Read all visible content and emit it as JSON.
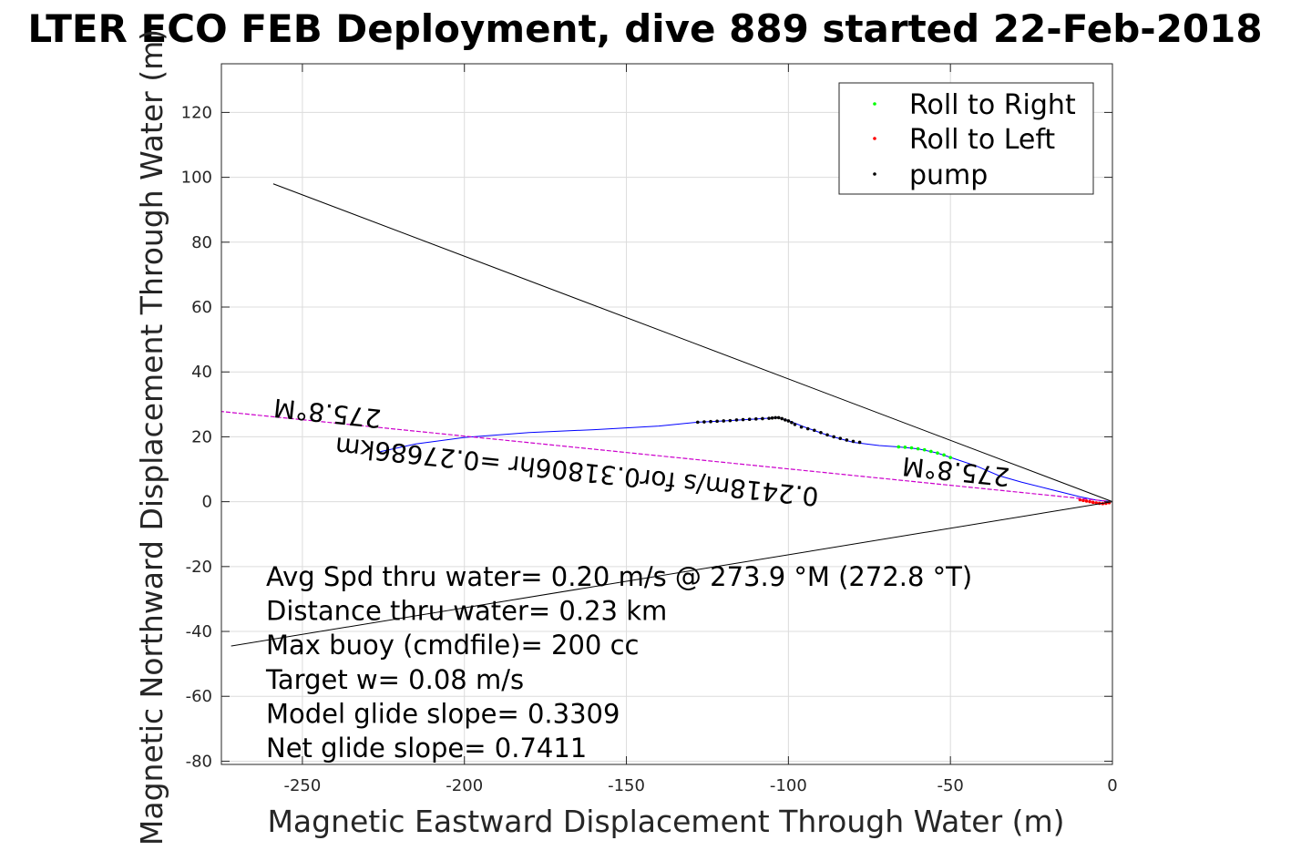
{
  "chart_data": {
    "type": "line",
    "title": "LTER ECO FEB Deployment, dive 889 started 22-Feb-2018",
    "xlabel": "Magnetic Eastward Displacement Through Water (m)",
    "ylabel": "Magnetic Northward Displacement Through Water (m)",
    "xlim": [
      -275,
      0
    ],
    "ylim": [
      -81,
      135
    ],
    "xticks": [
      -250,
      -200,
      -150,
      -100,
      -50,
      0
    ],
    "yticks": [
      -80,
      -60,
      -40,
      -20,
      0,
      20,
      40,
      60,
      80,
      100,
      120
    ],
    "grid": true,
    "legend_position": "top-right",
    "legend": [
      {
        "label": "Roll to Right",
        "color": "#00ff00"
      },
      {
        "label": "Roll to Left",
        "color": "#ff0000"
      },
      {
        "label": "pump",
        "color": "#000000"
      }
    ],
    "series": [
      {
        "kind": "track",
        "color": "#0000ff",
        "x": [
          0,
          -5,
          -10,
          -20,
          -28,
          -35,
          -42,
          -48,
          -54,
          -60,
          -66,
          -72,
          -80,
          -88,
          -95,
          -100,
          -103,
          -105,
          -110,
          -120,
          -128,
          -140,
          -160,
          -180,
          -200,
          -215,
          -226
        ],
        "y": [
          0,
          0.5,
          1.5,
          4,
          6,
          8,
          11,
          13,
          15,
          16.3,
          16.9,
          17.3,
          18.3,
          20.5,
          23,
          25,
          25.9,
          25.8,
          25.5,
          24.9,
          24.5,
          23.3,
          22.2,
          21.3,
          19.8,
          17.8,
          15.4
        ]
      },
      {
        "kind": "roll-right",
        "color": "#00ff00",
        "x": [
          -66,
          -64,
          -62,
          -60,
          -58,
          -56,
          -54,
          -52,
          -50
        ],
        "y": [
          16.9,
          16.8,
          16.6,
          16.3,
          16.0,
          15.5,
          15.0,
          14.4,
          13.6
        ]
      },
      {
        "kind": "roll-left",
        "color": "#ff0000",
        "x": [
          -1,
          -2,
          -3,
          -4,
          -5,
          -6,
          -7,
          -8,
          -9,
          -10
        ],
        "y": [
          -0.3,
          -0.5,
          -0.6,
          -0.5,
          -0.4,
          -0.2,
          0.0,
          0.2,
          0.4,
          0.6
        ]
      },
      {
        "kind": "pump",
        "color": "#000000",
        "x": [
          -128,
          -126,
          -124,
          -122,
          -120,
          -118,
          -116,
          -114,
          -112,
          -110,
          -108,
          -106,
          -105,
          -104,
          -103,
          -102,
          -101,
          -100,
          -99,
          -98,
          -96,
          -94,
          -92,
          -90,
          -88,
          -86,
          -84,
          -82,
          -80,
          -78
        ],
        "y": [
          24.5,
          24.6,
          24.7,
          24.8,
          24.9,
          25.0,
          25.2,
          25.3,
          25.4,
          25.5,
          25.6,
          25.7,
          25.8,
          25.9,
          25.9,
          25.6,
          25.2,
          24.9,
          24.4,
          23.8,
          23.0,
          22.5,
          22.0,
          21.3,
          20.6,
          20.0,
          19.5,
          19.0,
          18.6,
          18.3
        ]
      },
      {
        "kind": "heading-line",
        "color": "#cc00cc",
        "x": [
          0,
          -275
        ],
        "y": [
          0,
          27.8
        ]
      },
      {
        "kind": "envelope-upper",
        "color": "#000000",
        "x": [
          0,
          -259
        ],
        "y": [
          0,
          98
        ]
      },
      {
        "kind": "envelope-lower",
        "color": "#000000",
        "x": [
          0,
          -272
        ],
        "y": [
          0,
          -44.5
        ]
      }
    ],
    "annotations": [
      {
        "text": "275.8°M",
        "x": -242,
        "y": 30,
        "rotation": 186
      },
      {
        "text": "0.2418m/s for0.31806hr =0.27686km",
        "x": -165,
        "y": 12,
        "rotation": 186
      },
      {
        "text": "275.8°M",
        "x": -48,
        "y": 12,
        "rotation": 186
      }
    ],
    "stats": [
      "Avg Spd thru water=  0.20 m/s @ 273.9 °M (272.8 °T)",
      "Distance thru water=  0.23 km",
      "Max buoy (cmdfile)= 200 cc",
      "Target w= 0.08 m/s",
      "Model glide slope= 0.3309",
      "Net glide slope= 0.7411"
    ]
  }
}
